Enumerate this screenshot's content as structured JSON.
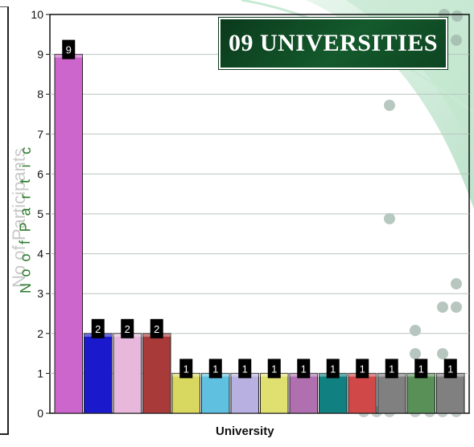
{
  "chart_data": {
    "type": "bar",
    "title": "09 UNIVERSITIES",
    "xlabel": "University",
    "ylabel": "No of Participants",
    "ylim": [
      0,
      10
    ],
    "yticks": [
      "0",
      "1",
      "2",
      "3",
      "4",
      "5",
      "6",
      "7",
      "8",
      "9",
      "10"
    ],
    "grid": true,
    "legend": "none",
    "values": [
      9,
      2,
      2,
      2,
      1,
      1,
      1,
      1,
      1,
      1,
      1,
      1,
      1,
      1
    ],
    "data_labels": [
      "9",
      "2",
      "2",
      "2",
      "1",
      "1",
      "1",
      "1",
      "1",
      "1",
      "1",
      "1",
      "1",
      "1"
    ],
    "colors": [
      "#cc66cc",
      "#1a1acc",
      "#e8b8dc",
      "#a83a3a",
      "#d8d860",
      "#60c0e0",
      "#b8b0e0",
      "#e0e070",
      "#b070b0",
      "#108080",
      "#d04848",
      "#808080",
      "#589058",
      "#808080"
    ]
  }
}
